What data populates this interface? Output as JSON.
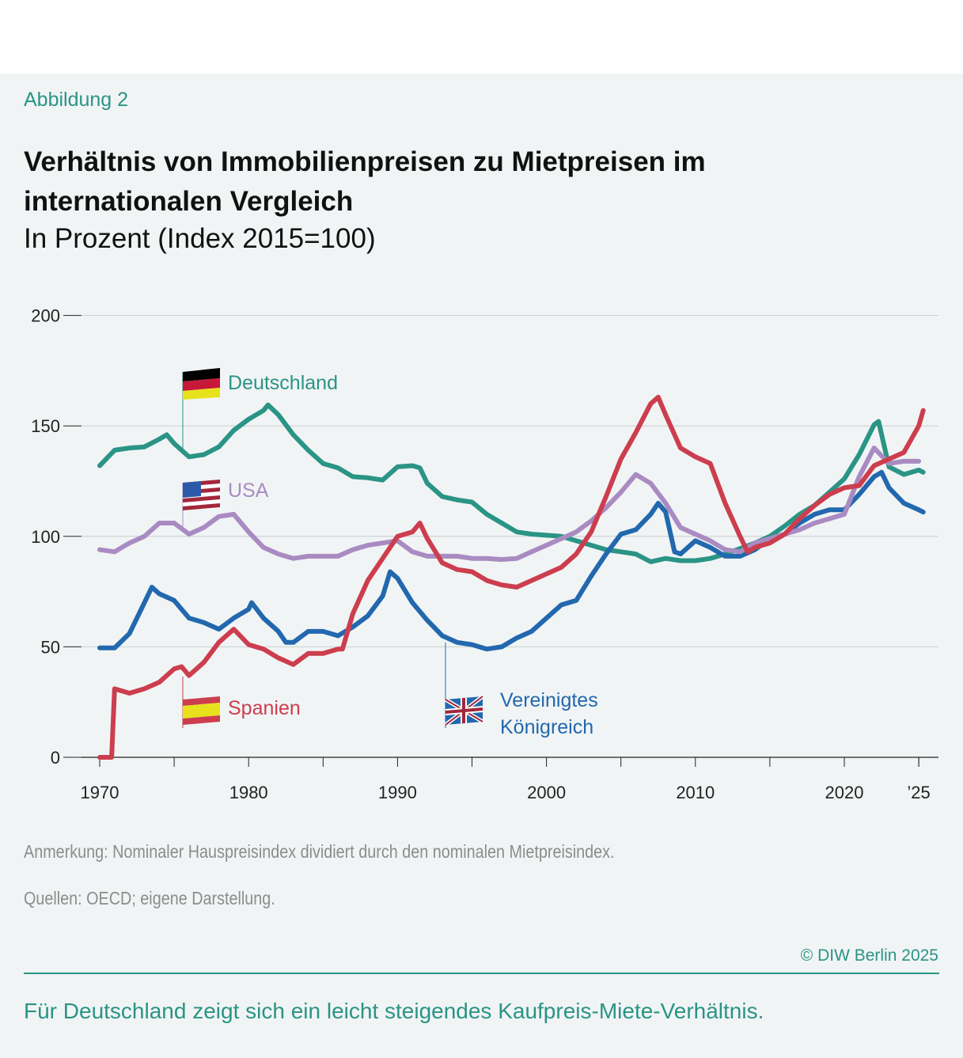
{
  "figure_label": "Abbildung 2",
  "title": "Verhältnis von Immobilienpreisen zu Mietpreisen im internationalen Vergleich",
  "subtitle": "In Prozent (Index 2015=100)",
  "note": "Anmerkung: Nominaler Hauspreisindex dividiert durch den nominalen Mietpreisindex.",
  "sources": "Quellen: OECD; eigene Darstellung.",
  "copyright": "© DIW Berlin 2025",
  "footer": "Für Deutschland zeigt sich ein leicht steigendes Kaufpreis-Miete-Verhältnis.",
  "chart_data": {
    "type": "line",
    "title": "Verhältnis von Immobilienpreisen zu Mietpreisen im internationalen Vergleich",
    "ylabel": "In Prozent (Index 2015=100)",
    "xlim": [
      1970,
      2025.5
    ],
    "ylim": [
      0,
      200
    ],
    "y_ticks": [
      "200",
      "150",
      "100",
      "50",
      "0"
    ],
    "x_ticks": [
      {
        "year": 1970,
        "label": "1970"
      },
      {
        "year": 1980,
        "label": "1980"
      },
      {
        "year": 1990,
        "label": "1990"
      },
      {
        "year": 2000,
        "label": "2000"
      },
      {
        "year": 2010,
        "label": "2010"
      },
      {
        "year": 2020,
        "label": "2020"
      },
      {
        "year": 2025,
        "label": "’25"
      }
    ],
    "grid": "horizontal",
    "legend": "inline labels with flags",
    "series": [
      {
        "name": "Deutschland",
        "color": "#2a9485",
        "icon": "german-flag-icon",
        "x": [
          1970,
          1971,
          1972,
          1973,
          1974,
          1974.5,
          1975,
          1976,
          1977,
          1978,
          1979,
          1980,
          1981,
          1981.3,
          1982,
          1983,
          1984,
          1985,
          1986,
          1987,
          1988,
          1989,
          1990,
          1991,
          1991.5,
          1992,
          1993,
          1994,
          1995,
          1996,
          1997,
          1998,
          1999,
          2000,
          2001,
          2002,
          2003,
          2004,
          2005,
          2006,
          2007,
          2008,
          2009,
          2010,
          2011,
          2012,
          2013,
          2014,
          2015,
          2016,
          2017,
          2018,
          2019,
          2020,
          2021,
          2022,
          2022.3,
          2023,
          2024,
          2025,
          2025.3
        ],
        "y": [
          132,
          139,
          140,
          140.5,
          144,
          146,
          142,
          136,
          137,
          140.5,
          148,
          153,
          157,
          159.5,
          155,
          146,
          139,
          133,
          131,
          127,
          126.5,
          125.5,
          131.5,
          132,
          131,
          124,
          118,
          116.5,
          115.5,
          110,
          106,
          102,
          101,
          100.5,
          100,
          98,
          96,
          94,
          93,
          92,
          88.5,
          90,
          89,
          89,
          90,
          92,
          94.5,
          97,
          100,
          104.7,
          110,
          114,
          120,
          126,
          137,
          150.5,
          152,
          131.5,
          128,
          130,
          129
        ]
      },
      {
        "name": "USA",
        "color": "#a98bc2",
        "icon": "us-flag-icon",
        "x": [
          1970,
          1971,
          1972,
          1973,
          1974,
          1975,
          1976,
          1977,
          1978,
          1979,
          1980,
          1981,
          1982,
          1983,
          1984,
          1985,
          1986,
          1987,
          1988,
          1989,
          1990,
          1991,
          1992,
          1993,
          1994,
          1995,
          1996,
          1997,
          1998,
          1999,
          2000,
          2001,
          2002,
          2003,
          2004,
          2005,
          2006,
          2007,
          2008,
          2009,
          2010,
          2011,
          2012,
          2013,
          2014,
          2015,
          2016,
          2017,
          2018,
          2019,
          2020,
          2021,
          2022,
          2023,
          2024,
          2025
        ],
        "y": [
          94,
          93,
          97,
          100,
          106,
          106,
          101,
          104,
          109,
          110,
          102,
          95,
          92,
          90,
          91,
          91,
          91,
          94,
          96,
          97,
          98,
          93,
          91,
          91,
          91,
          90,
          90,
          89.5,
          90,
          93,
          96,
          99,
          102,
          107,
          113,
          120,
          128,
          124,
          115,
          104,
          101,
          98,
          94,
          93,
          97,
          99,
          101,
          103,
          106,
          108,
          110,
          127,
          140,
          133,
          134,
          134
        ]
      },
      {
        "name": "Spanien",
        "color": "#cc3e4e",
        "icon": "spanish-flag-icon",
        "x": [
          1970,
          1970.8,
          1971,
          1972,
          1973,
          1974,
          1975,
          1975.5,
          1976,
          1977,
          1978,
          1979,
          1980,
          1981,
          1982,
          1983,
          1984,
          1985,
          1986,
          1986.3,
          1987,
          1988,
          1989,
          1990,
          1991,
          1991.5,
          1992,
          1993,
          1994,
          1995,
          1996,
          1997,
          1998,
          1999,
          2000,
          2001,
          2002,
          2003,
          2004,
          2005,
          2006,
          2007,
          2007.5,
          2008,
          2009,
          2010,
          2011,
          2012,
          2013,
          2013.5,
          2014,
          2015,
          2016,
          2017,
          2018,
          2019,
          2020,
          2021,
          2022,
          2023,
          2024,
          2025,
          2025.3
        ],
        "y": [
          0,
          0,
          31,
          29,
          31,
          34,
          40,
          41,
          37,
          43,
          52,
          58,
          51,
          49,
          45,
          42,
          47,
          47,
          49,
          49,
          65,
          80,
          90,
          100,
          102,
          106,
          99,
          88,
          85,
          84,
          80,
          78,
          77,
          80,
          83,
          86,
          92,
          102,
          118,
          135,
          147,
          160,
          163,
          155,
          140,
          136,
          133,
          115,
          100,
          93,
          95,
          97,
          101,
          108,
          114,
          119,
          122,
          123,
          132,
          135,
          138,
          150,
          157
        ]
      },
      {
        "name": "Vereinigtes Königreich",
        "color": "#2268ae",
        "icon": "uk-flag-icon",
        "x": [
          1970,
          1971,
          1972,
          1973,
          1973.5,
          1974,
          1975,
          1976,
          1977,
          1978,
          1979,
          1980,
          1980.2,
          1981,
          1982,
          1982.5,
          1983,
          1984,
          1985,
          1986,
          1987,
          1988,
          1989,
          1989.5,
          1990,
          1991,
          1992,
          1993,
          1994,
          1995,
          1996,
          1997,
          1998,
          1999,
          2000,
          2001,
          2002,
          2003,
          2004,
          2005,
          2006,
          2007,
          2007.5,
          2008,
          2008.6,
          2009,
          2010,
          2011,
          2012,
          2013,
          2014,
          2015,
          2016,
          2017,
          2018,
          2019,
          2020,
          2021,
          2022,
          2022.5,
          2023,
          2024,
          2025,
          2025.3
        ],
        "y": [
          49.5,
          49.5,
          56,
          70,
          77,
          74,
          71,
          63,
          61,
          58,
          63,
          67,
          70,
          63,
          57,
          52,
          52,
          57,
          57,
          55,
          59,
          64,
          73,
          84,
          81,
          70,
          62,
          55,
          52,
          51,
          49,
          50,
          54,
          57,
          63,
          69,
          71,
          82,
          92,
          101,
          103,
          110,
          115,
          111,
          93,
          92,
          98,
          95,
          91,
          91,
          94,
          99,
          101,
          106,
          110,
          112,
          112,
          119,
          127,
          129,
          122,
          115,
          112,
          111
        ]
      }
    ]
  }
}
